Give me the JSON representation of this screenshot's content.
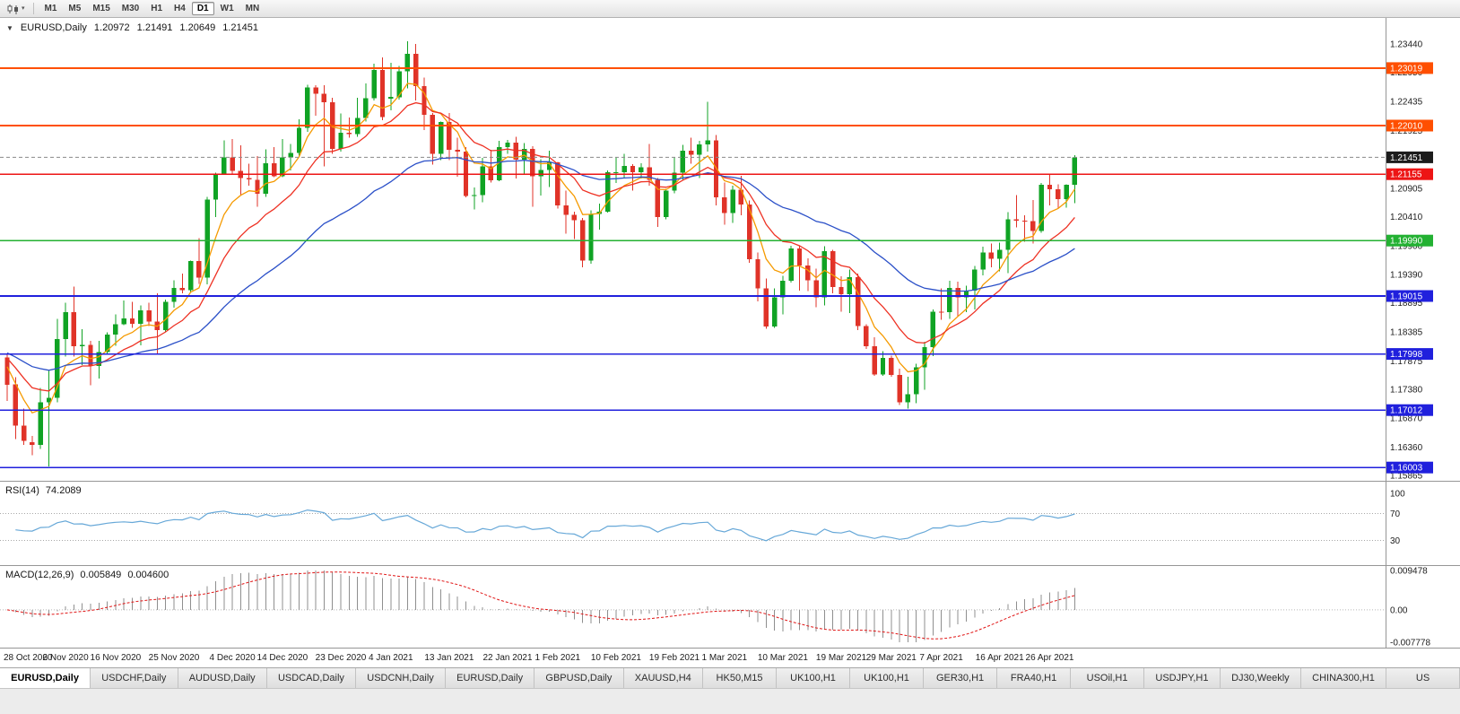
{
  "toolbar": {
    "periods": [
      "M1",
      "M5",
      "M15",
      "M30",
      "H1",
      "H4",
      "D1",
      "W1",
      "MN"
    ],
    "active_period": "D1",
    "dropdown_icon": "▾"
  },
  "chart_data": {
    "type": "candlestick",
    "symbol": "EURUSD",
    "timeframe": "Daily",
    "title": {
      "collapse_icon": "▼",
      "symbol_period": "EURUSD,Daily",
      "open": "1.20972",
      "high": "1.21491",
      "low": "1.20649",
      "close": "1.21451"
    },
    "background": "#ffffff",
    "grid": false,
    "up_color": "#10a324",
    "down_color": "#e03328",
    "price_axis": {
      "min": 1.1577,
      "max": 1.239,
      "ticks": [
        "1.23440",
        "1.22950",
        "1.22435",
        "1.21925",
        "1.21415",
        "1.20905",
        "1.20410",
        "1.19900",
        "1.19390",
        "1.18895",
        "1.18385",
        "1.17875",
        "1.17380",
        "1.16870",
        "1.16360",
        "1.15865"
      ]
    },
    "current_price": {
      "value": 1.21451,
      "label": "1.21451",
      "line_color": "#8a8a8a",
      "badge_bg": "#1c1c1c"
    },
    "levels": [
      {
        "value": 1.23019,
        "label": "1.23019",
        "color": "#ff4f00"
      },
      {
        "value": 1.2201,
        "label": "1.22010",
        "color": "#ff4f00"
      },
      {
        "value": 1.21155,
        "label": "1.21155",
        "color": "#ed1515"
      },
      {
        "value": 1.1999,
        "label": "1.19990",
        "color": "#23b132"
      },
      {
        "value": 1.19015,
        "label": "1.19015",
        "color": "#2020dd"
      },
      {
        "value": 1.17998,
        "label": "1.17998",
        "color": "#2020dd"
      },
      {
        "value": 1.17012,
        "label": "1.17012",
        "color": "#2020dd"
      },
      {
        "value": 1.16003,
        "label": "1.16003",
        "color": "#2020dd"
      }
    ],
    "moving_averages": [
      {
        "name": "fast",
        "period": 6,
        "seed": 1.179,
        "color": "#f59a00"
      },
      {
        "name": "medium",
        "period": 13,
        "seed": 1.18,
        "color": "#ee3224"
      },
      {
        "name": "slow",
        "period": 34,
        "seed": 1.1805,
        "color": "#2b50c8"
      }
    ],
    "candles": [
      [
        1.1794,
        1.18,
        1.1717,
        1.1746
      ],
      [
        1.1746,
        1.1759,
        1.165,
        1.1674
      ],
      [
        1.1674,
        1.1704,
        1.164,
        1.1647
      ],
      [
        1.1645,
        1.1656,
        1.1622,
        1.164
      ],
      [
        1.164,
        1.174,
        1.1633,
        1.1715
      ],
      [
        1.1715,
        1.177,
        1.1602,
        1.1723
      ],
      [
        1.1723,
        1.1861,
        1.1715,
        1.1826
      ],
      [
        1.1826,
        1.189,
        1.1795,
        1.1873
      ],
      [
        1.1873,
        1.1918,
        1.1795,
        1.1813
      ],
      [
        1.1813,
        1.1843,
        1.178,
        1.1816
      ],
      [
        1.1816,
        1.1823,
        1.1745,
        1.1779
      ],
      [
        1.1779,
        1.1823,
        1.1757,
        1.1803
      ],
      [
        1.1803,
        1.1838,
        1.1799,
        1.1834
      ],
      [
        1.1834,
        1.1869,
        1.1814,
        1.1852
      ],
      [
        1.1852,
        1.1894,
        1.185,
        1.1862
      ],
      [
        1.1862,
        1.1891,
        1.1846,
        1.1853
      ],
      [
        1.1853,
        1.1885,
        1.1815,
        1.1876
      ],
      [
        1.1876,
        1.189,
        1.1849,
        1.1857
      ],
      [
        1.1857,
        1.1906,
        1.18,
        1.1842
      ],
      [
        1.1842,
        1.1895,
        1.1838,
        1.1891
      ],
      [
        1.1891,
        1.1929,
        1.1881,
        1.1916
      ],
      [
        1.1916,
        1.1941,
        1.1906,
        1.1912
      ],
      [
        1.1912,
        1.1964,
        1.1907,
        1.1963
      ],
      [
        1.1963,
        1.2003,
        1.1923,
        1.1934
      ],
      [
        1.1934,
        1.2076,
        1.1922,
        1.2071
      ],
      [
        1.2071,
        1.2118,
        1.204,
        1.2115
      ],
      [
        1.2115,
        1.2175,
        1.2114,
        1.2145
      ],
      [
        1.2145,
        1.2177,
        1.2116,
        1.2121
      ],
      [
        1.2121,
        1.2166,
        1.2078,
        1.2109
      ],
      [
        1.2109,
        1.2134,
        1.2095,
        1.2106
      ],
      [
        1.2106,
        1.2147,
        1.2058,
        1.2081
      ],
      [
        1.2081,
        1.2159,
        1.2076,
        1.2135
      ],
      [
        1.2135,
        1.2163,
        1.211,
        1.2112
      ],
      [
        1.2112,
        1.2177,
        1.211,
        1.2145
      ],
      [
        1.2145,
        1.2169,
        1.2122,
        1.2153
      ],
      [
        1.2153,
        1.2212,
        1.2148,
        1.2197
      ],
      [
        1.2197,
        1.2273,
        1.219,
        1.2268
      ],
      [
        1.2268,
        1.2272,
        1.2218,
        1.2257
      ],
      [
        1.2257,
        1.2272,
        1.2129,
        1.2242
      ],
      [
        1.2242,
        1.225,
        1.2151,
        1.216
      ],
      [
        1.216,
        1.2222,
        1.2155,
        1.2188
      ],
      [
        1.2188,
        1.2215,
        1.218,
        1.2186
      ],
      [
        1.2186,
        1.225,
        1.2181,
        1.2214
      ],
      [
        1.2214,
        1.2275,
        1.2208,
        1.2249
      ],
      [
        1.2249,
        1.231,
        1.2245,
        1.2299
      ],
      [
        1.2299,
        1.2321,
        1.221,
        1.2216
      ],
      [
        1.2248,
        1.2311,
        1.2228,
        1.2251
      ],
      [
        1.2251,
        1.2306,
        1.2247,
        1.2296
      ],
      [
        1.2296,
        1.2349,
        1.2266,
        1.2327
      ],
      [
        1.2327,
        1.2344,
        1.2245,
        1.227
      ],
      [
        1.227,
        1.2285,
        1.2193,
        1.222
      ],
      [
        1.222,
        1.2223,
        1.2132,
        1.2151
      ],
      [
        1.2151,
        1.2208,
        1.214,
        1.2207
      ],
      [
        1.2207,
        1.2223,
        1.214,
        1.2158
      ],
      [
        1.2158,
        1.218,
        1.2111,
        1.2155
      ],
      [
        1.2155,
        1.2163,
        1.2075,
        1.2077
      ],
      [
        1.2077,
        1.2092,
        1.2054,
        1.2079
      ],
      [
        1.2079,
        1.2144,
        1.2066,
        1.2129
      ],
      [
        1.2129,
        1.2158,
        1.2101,
        1.2105
      ],
      [
        1.2105,
        1.2174,
        1.2103,
        1.2163
      ],
      [
        1.2163,
        1.2176,
        1.2151,
        1.2171
      ],
      [
        1.2171,
        1.2181,
        1.2108,
        1.2141
      ],
      [
        1.2141,
        1.217,
        1.2116,
        1.216
      ],
      [
        1.216,
        1.2165,
        1.2058,
        1.2112
      ],
      [
        1.2112,
        1.2142,
        1.2078,
        1.2123
      ],
      [
        1.2123,
        1.2157,
        1.2093,
        1.2136
      ],
      [
        1.2136,
        1.2137,
        1.2055,
        1.2061
      ],
      [
        1.2061,
        1.2087,
        1.2011,
        1.2044
      ],
      [
        1.2044,
        1.205,
        1.2002,
        1.2035
      ],
      [
        1.2035,
        1.2039,
        1.1952,
        1.1964
      ],
      [
        1.1964,
        1.2052,
        1.1958,
        1.2046
      ],
      [
        1.2046,
        1.2064,
        1.2018,
        1.205
      ],
      [
        1.205,
        1.2122,
        1.2048,
        1.2119
      ],
      [
        1.2119,
        1.2145,
        1.21,
        1.2119
      ],
      [
        1.2119,
        1.2151,
        1.2109,
        1.213
      ],
      [
        1.213,
        1.2133,
        1.2087,
        1.2119
      ],
      [
        1.2119,
        1.2135,
        1.2108,
        1.2128
      ],
      [
        1.2128,
        1.2169,
        1.2095,
        1.2106
      ],
      [
        1.2106,
        1.2109,
        1.2023,
        1.204
      ],
      [
        1.204,
        1.209,
        1.2036,
        1.2087
      ],
      [
        1.2087,
        1.2145,
        1.2082,
        1.2118
      ],
      [
        1.2118,
        1.2167,
        1.2106,
        1.2157
      ],
      [
        1.2157,
        1.218,
        1.2134,
        1.215
      ],
      [
        1.215,
        1.2174,
        1.2109,
        1.2168
      ],
      [
        1.2168,
        1.2243,
        1.2155,
        1.2175
      ],
      [
        1.2175,
        1.2184,
        1.2061,
        1.2075
      ],
      [
        1.2075,
        1.2101,
        1.2027,
        1.2047
      ],
      [
        1.2047,
        1.2095,
        1.203,
        1.2088
      ],
      [
        1.2088,
        1.2113,
        1.2043,
        1.2062
      ],
      [
        1.2062,
        1.2069,
        1.196,
        1.1966
      ],
      [
        1.1966,
        1.1978,
        1.1892,
        1.1915
      ],
      [
        1.1915,
        1.1932,
        1.1844,
        1.1848
      ],
      [
        1.1848,
        1.1915,
        1.1846,
        1.1899
      ],
      [
        1.1899,
        1.1937,
        1.1869,
        1.1928
      ],
      [
        1.1928,
        1.199,
        1.1925,
        1.1985
      ],
      [
        1.1985,
        1.1989,
        1.1911,
        1.1955
      ],
      [
        1.1955,
        1.1968,
        1.191,
        1.1929
      ],
      [
        1.1929,
        1.195,
        1.1882,
        1.1899
      ],
      [
        1.1899,
        1.1989,
        1.1885,
        1.198
      ],
      [
        1.198,
        1.1983,
        1.1906,
        1.1917
      ],
      [
        1.1917,
        1.1936,
        1.1874,
        1.1905
      ],
      [
        1.1905,
        1.1948,
        1.1872,
        1.1935
      ],
      [
        1.1935,
        1.1941,
        1.1842,
        1.1849
      ],
      [
        1.1849,
        1.1852,
        1.1809,
        1.1813
      ],
      [
        1.1813,
        1.1829,
        1.1761,
        1.1764
      ],
      [
        1.1764,
        1.1805,
        1.1761,
        1.1793
      ],
      [
        1.1793,
        1.1797,
        1.176,
        1.1763
      ],
      [
        1.1763,
        1.1774,
        1.171,
        1.1715
      ],
      [
        1.1715,
        1.176,
        1.1704,
        1.1729
      ],
      [
        1.1729,
        1.1783,
        1.1713,
        1.1776
      ],
      [
        1.1776,
        1.1821,
        1.1737,
        1.1812
      ],
      [
        1.1812,
        1.1878,
        1.1796,
        1.1874
      ],
      [
        1.1874,
        1.1915,
        1.186,
        1.1873
      ],
      [
        1.1873,
        1.1928,
        1.1861,
        1.1916
      ],
      [
        1.1916,
        1.1927,
        1.1865,
        1.1899
      ],
      [
        1.1899,
        1.192,
        1.1873,
        1.1911
      ],
      [
        1.1911,
        1.1954,
        1.1878,
        1.1948
      ],
      [
        1.1948,
        1.1988,
        1.1938,
        1.1978
      ],
      [
        1.1978,
        1.1994,
        1.1952,
        1.1967
      ],
      [
        1.1967,
        1.1995,
        1.1945,
        1.1983
      ],
      [
        1.1983,
        1.2049,
        1.1942,
        1.2036
      ],
      [
        1.2036,
        1.2079,
        1.2022,
        1.2034
      ],
      [
        1.2034,
        1.2043,
        1.1997,
        1.2033
      ],
      [
        1.2033,
        1.207,
        1.1994,
        1.2016
      ],
      [
        1.2016,
        1.21,
        1.2013,
        1.2097
      ],
      [
        1.2097,
        1.2117,
        1.2061,
        1.2089
      ],
      [
        1.2089,
        1.2098,
        1.2056,
        1.2072
      ],
      [
        1.2072,
        1.2098,
        1.2057,
        1.2097
      ],
      [
        1.2097,
        1.2149,
        1.2065,
        1.2145
      ]
    ],
    "date_labels": [
      {
        "t": "28 Oct 2020",
        "i": 0
      },
      {
        "t": "6 Nov 2020",
        "i": 7
      },
      {
        "t": "16 Nov 2020",
        "i": 13
      },
      {
        "t": "25 Nov 2020",
        "i": 20
      },
      {
        "t": "4 Dec 2020",
        "i": 27
      },
      {
        "t": "14 Dec 2020",
        "i": 33
      },
      {
        "t": "23 Dec 2020",
        "i": 40
      },
      {
        "t": "4 Jan 2021",
        "i": 46
      },
      {
        "t": "13 Jan 2021",
        "i": 53
      },
      {
        "t": "22 Jan 2021",
        "i": 60
      },
      {
        "t": "1 Feb 2021",
        "i": 66
      },
      {
        "t": "10 Feb 2021",
        "i": 73
      },
      {
        "t": "19 Feb 2021",
        "i": 80
      },
      {
        "t": "1 Mar 2021",
        "i": 86
      },
      {
        "t": "10 Mar 2021",
        "i": 93
      },
      {
        "t": "19 Mar 2021",
        "i": 100
      },
      {
        "t": "29 Mar 2021",
        "i": 106
      },
      {
        "t": "7 Apr 2021",
        "i": 112
      },
      {
        "t": "16 Apr 2021",
        "i": 119
      },
      {
        "t": "26 Apr 2021",
        "i": 125
      }
    ],
    "rsi": {
      "name": "RSI(14)",
      "value": "74.2089",
      "period": 14,
      "line_color": "#67a8d8",
      "levels": [
        70,
        30
      ],
      "scale": [
        "100",
        "70",
        "30"
      ]
    },
    "macd": {
      "name": "MACD(12,26,9)",
      "value_macd": "0.005849",
      "value_signal": "0.004600",
      "fast": 12,
      "slow": 26,
      "signal": 9,
      "hist_color": "#8f8f8f",
      "signal_color": "#e01515",
      "max": 0.009478,
      "min": -0.007778,
      "scale_top": "0.009478",
      "scale_zero": "0.00",
      "scale_bottom": "-0.007778"
    }
  },
  "tabs": {
    "active_index": 0,
    "items": [
      "EURUSD,Daily",
      "USDCHF,Daily",
      "AUDUSD,Daily",
      "USDCAD,Daily",
      "USDCNH,Daily",
      "EURUSD,Daily",
      "GBPUSD,Daily",
      "XAUUSD,H4",
      "HK50,M15",
      "UK100,H1",
      "UK100,H1",
      "GER30,H1",
      "FRA40,H1",
      "USOil,H1",
      "USDJPY,H1",
      "DJ30,Weekly",
      "CHINA300,H1",
      "US"
    ]
  }
}
